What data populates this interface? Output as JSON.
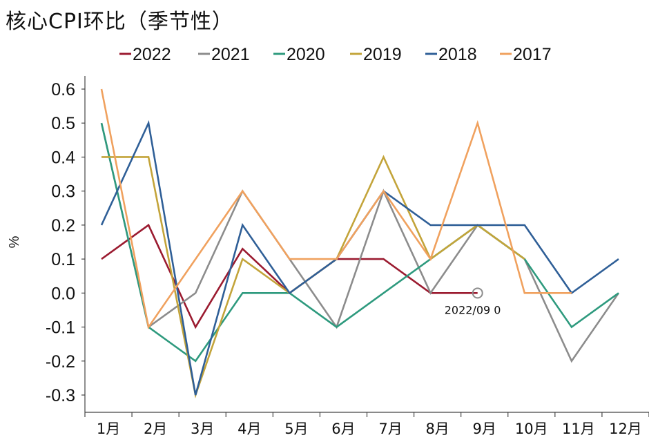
{
  "chart_data": {
    "type": "line",
    "title": "核心CPI环比（季节性）",
    "ylabel": "%",
    "xlabel": "",
    "ylim": [
      -0.3,
      0.6
    ],
    "yticks": [
      "0.6",
      "0.5",
      "0.4",
      "0.3",
      "0.2",
      "0.1",
      "0.0",
      "-0.1",
      "-0.2",
      "-0.3"
    ],
    "ytick_values": [
      0.6,
      0.5,
      0.4,
      0.3,
      0.2,
      0.1,
      0.0,
      -0.1,
      -0.2,
      -0.3
    ],
    "categories": [
      "1月",
      "2月",
      "3月",
      "4月",
      "5月",
      "6月",
      "7月",
      "8月",
      "9月",
      "10月",
      "11月",
      "12月"
    ],
    "legend_position": "top",
    "grid": false,
    "series": [
      {
        "name": "2022",
        "color": "#9b1b30",
        "values": [
          0.1,
          0.2,
          -0.1,
          0.13,
          0.0,
          0.1,
          0.1,
          0.0,
          0.0,
          null,
          null,
          null
        ]
      },
      {
        "name": "2021",
        "color": "#8c8c8c",
        "values": [
          0.5,
          -0.1,
          0.0,
          0.3,
          0.1,
          -0.1,
          0.3,
          0.0,
          0.2,
          0.1,
          -0.2,
          0.0
        ]
      },
      {
        "name": "2020",
        "color": "#2e9a7e",
        "values": [
          0.5,
          -0.1,
          -0.2,
          0.0,
          0.0,
          -0.1,
          0.0,
          0.1,
          0.2,
          0.1,
          -0.1,
          0.0
        ]
      },
      {
        "name": "2019",
        "color": "#c3a43a",
        "values": [
          0.4,
          0.4,
          -0.3,
          0.1,
          0.0,
          0.1,
          0.4,
          0.1,
          0.2,
          0.1,
          null,
          null
        ]
      },
      {
        "name": "2018",
        "color": "#2f5f97",
        "values": [
          0.2,
          0.5,
          -0.3,
          0.2,
          0.0,
          0.1,
          0.3,
          0.2,
          0.2,
          0.2,
          0.0,
          0.1
        ]
      },
      {
        "name": "2017",
        "color": "#f0a15e",
        "values": [
          0.6,
          -0.1,
          0.1,
          0.3,
          0.1,
          0.1,
          0.3,
          0.1,
          0.5,
          0.0,
          0.0,
          null
        ]
      }
    ],
    "annotation": {
      "text": "2022/09 0",
      "series": "2022",
      "category_index": 8,
      "value": 0.0
    }
  }
}
